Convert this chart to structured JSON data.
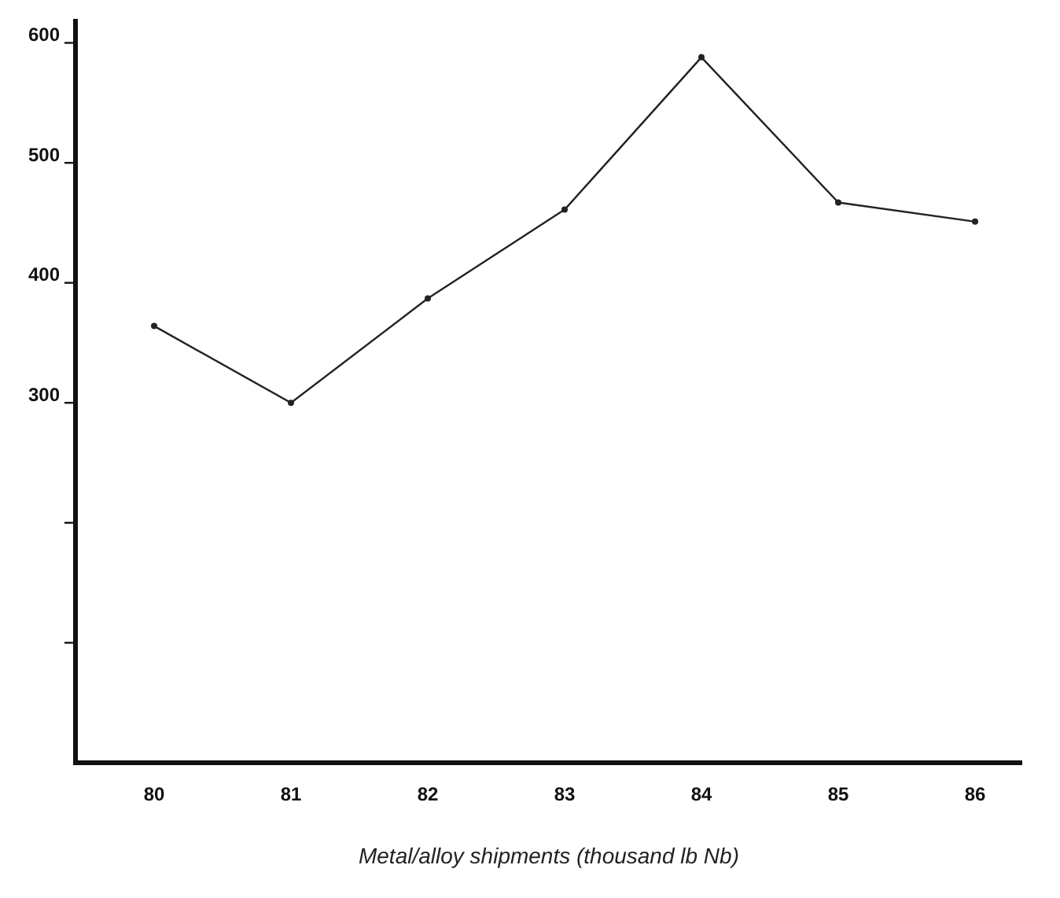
{
  "chart_data": {
    "type": "line",
    "xlabel": "Metal/alloy shipments (thousand lb Nb)",
    "categories": [
      "80",
      "81",
      "82",
      "83",
      "84",
      "85",
      "86"
    ],
    "values": [
      364,
      300,
      387,
      461,
      588,
      467,
      451
    ],
    "color": "#222222",
    "marker": "circle",
    "line_style": "solid",
    "grid": false,
    "ylim": [
      0,
      620
    ],
    "yticks": [
      {
        "value": 100,
        "label": null
      },
      {
        "value": 200,
        "label": null
      },
      300,
      400,
      500,
      600
    ]
  }
}
